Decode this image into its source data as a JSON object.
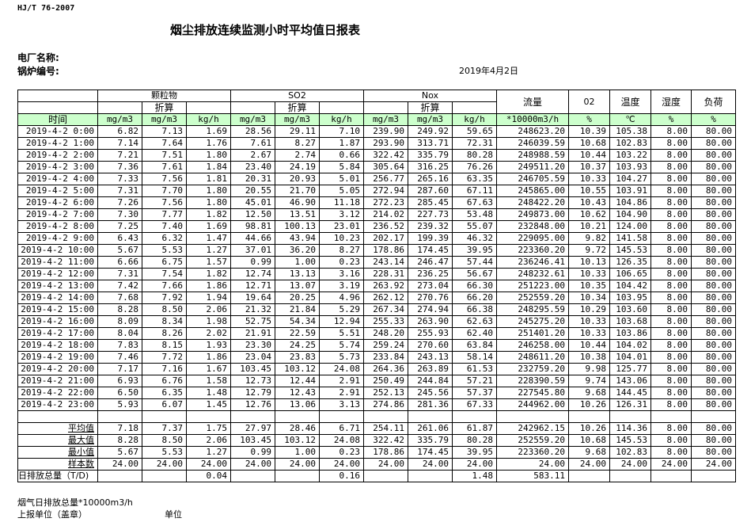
{
  "standard": "HJ/T  76-2007",
  "title": "烟尘排放连续监测小时平均值日报表",
  "plant_label": "电厂名称:",
  "boiler_label": "锅炉编号:",
  "date": "2019年4月2日",
  "header": {
    "groups": [
      "颗粒物",
      "SO2",
      "Nox"
    ],
    "converted": "折算",
    "flow": "流量",
    "o2": "02",
    "temp": "温度",
    "humidity": "湿度",
    "load": "负荷",
    "units": [
      "时间",
      "mg/m3",
      "mg/m3",
      "kg/h",
      "mg/m3",
      "mg/m3",
      "kg/h",
      "mg/m3",
      "mg/m3",
      "kg/h",
      "*10000m3/h",
      "%",
      "℃",
      "%",
      "%"
    ]
  },
  "rows": [
    [
      "2019-4-2 0:00",
      "6.82",
      "7.13",
      "1.69",
      "28.56",
      "29.11",
      "7.10",
      "239.90",
      "249.92",
      "59.65",
      "248623.20",
      "10.39",
      "105.38",
      "8.00",
      "80.00"
    ],
    [
      "2019-4-2 1:00",
      "7.14",
      "7.64",
      "1.76",
      "7.61",
      "8.27",
      "1.87",
      "293.90",
      "313.71",
      "72.31",
      "246039.59",
      "10.68",
      "102.83",
      "8.00",
      "80.00"
    ],
    [
      "2019-4-2 2:00",
      "7.21",
      "7.51",
      "1.80",
      "2.67",
      "2.74",
      "0.66",
      "322.42",
      "335.79",
      "80.28",
      "248988.59",
      "10.44",
      "103.22",
      "8.00",
      "80.00"
    ],
    [
      "2019-4-2 3:00",
      "7.36",
      "7.61",
      "1.84",
      "23.40",
      "24.19",
      "5.84",
      "305.64",
      "316.25",
      "76.26",
      "249511.20",
      "10.37",
      "103.93",
      "8.00",
      "80.00"
    ],
    [
      "2019-4-2 4:00",
      "7.33",
      "7.56",
      "1.81",
      "20.31",
      "20.93",
      "5.01",
      "256.77",
      "265.16",
      "63.35",
      "246705.59",
      "10.33",
      "104.27",
      "8.00",
      "80.00"
    ],
    [
      "2019-4-2 5:00",
      "7.31",
      "7.70",
      "1.80",
      "20.55",
      "21.70",
      "5.05",
      "272.94",
      "287.60",
      "67.11",
      "245865.00",
      "10.55",
      "103.91",
      "8.00",
      "80.00"
    ],
    [
      "2019-4-2 6:00",
      "7.26",
      "7.56",
      "1.80",
      "45.01",
      "46.90",
      "11.18",
      "272.23",
      "285.45",
      "67.63",
      "248422.20",
      "10.43",
      "104.86",
      "8.00",
      "80.00"
    ],
    [
      "2019-4-2 7:00",
      "7.30",
      "7.77",
      "1.82",
      "12.50",
      "13.51",
      "3.12",
      "214.02",
      "227.73",
      "53.48",
      "249873.00",
      "10.62",
      "104.90",
      "8.00",
      "80.00"
    ],
    [
      "2019-4-2 8:00",
      "7.25",
      "7.40",
      "1.69",
      "98.81",
      "100.13",
      "23.01",
      "236.52",
      "239.32",
      "55.07",
      "232848.00",
      "10.21",
      "124.00",
      "8.00",
      "80.00"
    ],
    [
      "2019-4-2 9:00",
      "6.43",
      "6.32",
      "1.47",
      "44.66",
      "43.94",
      "10.23",
      "202.17",
      "199.39",
      "46.32",
      "229095.00",
      "9.82",
      "141.58",
      "8.00",
      "80.00"
    ],
    [
      "2019-4-2 10:00",
      "5.67",
      "5.53",
      "1.27",
      "37.01",
      "36.20",
      "8.27",
      "178.86",
      "174.45",
      "39.95",
      "223360.20",
      "9.72",
      "145.53",
      "8.00",
      "80.00"
    ],
    [
      "2019-4-2 11:00",
      "6.66",
      "6.75",
      "1.57",
      "0.99",
      "1.00",
      "0.23",
      "243.14",
      "246.47",
      "57.44",
      "236246.41",
      "10.13",
      "126.35",
      "8.00",
      "80.00"
    ],
    [
      "2019-4-2 12:00",
      "7.31",
      "7.54",
      "1.82",
      "12.74",
      "13.13",
      "3.16",
      "228.31",
      "236.25",
      "56.67",
      "248232.61",
      "10.33",
      "106.65",
      "8.00",
      "80.00"
    ],
    [
      "2019-4-2 13:00",
      "7.42",
      "7.66",
      "1.86",
      "12.71",
      "13.07",
      "3.19",
      "263.92",
      "273.04",
      "66.30",
      "251223.00",
      "10.35",
      "104.42",
      "8.00",
      "80.00"
    ],
    [
      "2019-4-2 14:00",
      "7.68",
      "7.92",
      "1.94",
      "19.64",
      "20.25",
      "4.96",
      "262.12",
      "270.76",
      "66.20",
      "252559.20",
      "10.34",
      "103.95",
      "8.00",
      "80.00"
    ],
    [
      "2019-4-2 15:00",
      "8.28",
      "8.50",
      "2.06",
      "21.32",
      "21.84",
      "5.29",
      "267.34",
      "274.94",
      "66.38",
      "248295.59",
      "10.29",
      "103.60",
      "8.00",
      "80.00"
    ],
    [
      "2019-4-2 16:00",
      "8.09",
      "8.34",
      "1.98",
      "52.75",
      "54.34",
      "12.94",
      "255.33",
      "263.90",
      "62.63",
      "245275.20",
      "10.33",
      "103.68",
      "8.00",
      "80.00"
    ],
    [
      "2019-4-2 17:00",
      "8.04",
      "8.26",
      "2.02",
      "21.91",
      "22.59",
      "5.51",
      "248.20",
      "255.93",
      "62.40",
      "251401.20",
      "10.33",
      "103.86",
      "8.00",
      "80.00"
    ],
    [
      "2019-4-2 18:00",
      "7.83",
      "8.15",
      "1.93",
      "23.30",
      "24.25",
      "5.74",
      "259.24",
      "270.60",
      "63.84",
      "246258.00",
      "10.44",
      "104.02",
      "8.00",
      "80.00"
    ],
    [
      "2019-4-2 19:00",
      "7.46",
      "7.72",
      "1.86",
      "23.04",
      "23.83",
      "5.73",
      "233.84",
      "243.13",
      "58.14",
      "248611.20",
      "10.38",
      "104.01",
      "8.00",
      "80.00"
    ],
    [
      "2019-4-2 20:00",
      "7.17",
      "7.16",
      "1.67",
      "103.45",
      "103.12",
      "24.08",
      "264.36",
      "263.89",
      "61.53",
      "232759.20",
      "9.98",
      "125.77",
      "8.00",
      "80.00"
    ],
    [
      "2019-4-2 21:00",
      "6.93",
      "6.76",
      "1.58",
      "12.73",
      "12.44",
      "2.91",
      "250.49",
      "244.84",
      "57.21",
      "228390.59",
      "9.74",
      "143.06",
      "8.00",
      "80.00"
    ],
    [
      "2019-4-2 22:00",
      "6.50",
      "6.35",
      "1.48",
      "12.79",
      "12.43",
      "2.91",
      "252.13",
      "245.56",
      "57.37",
      "227545.80",
      "9.68",
      "144.45",
      "8.00",
      "80.00"
    ],
    [
      "2019-4-2 23:00",
      "5.93",
      "6.07",
      "1.45",
      "12.76",
      "13.06",
      "3.13",
      "274.86",
      "281.36",
      "67.33",
      "244962.00",
      "10.26",
      "126.31",
      "8.00",
      "80.00"
    ],
    [
      "",
      "",
      "",
      "",
      "",
      "",
      "",
      "",
      "",
      "",
      "",
      "",
      "",
      "",
      ""
    ]
  ],
  "stats": [
    [
      "平均值",
      "7.18",
      "7.37",
      "1.75",
      "27.97",
      "28.46",
      "6.71",
      "254.11",
      "261.06",
      "61.87",
      "242962.15",
      "10.26",
      "114.36",
      "8.00",
      "80.00"
    ],
    [
      "最大值",
      "8.28",
      "8.50",
      "2.06",
      "103.45",
      "103.12",
      "24.08",
      "322.42",
      "335.79",
      "80.28",
      "252559.20",
      "10.68",
      "145.53",
      "8.00",
      "80.00"
    ],
    [
      "最小值",
      "5.67",
      "5.53",
      "1.27",
      "0.99",
      "1.00",
      "0.23",
      "178.86",
      "174.45",
      "39.95",
      "223360.20",
      "9.68",
      "102.83",
      "8.00",
      "80.00"
    ],
    [
      "样本数",
      "24.00",
      "24.00",
      "24.00",
      "24.00",
      "24.00",
      "24.00",
      "24.00",
      "24.00",
      "24.00",
      "24.00",
      "24.00",
      "24.00",
      "24.00",
      "24.00"
    ]
  ],
  "daily_total": [
    "日排放总量（T/D)",
    "",
    "",
    "0.04",
    "",
    "",
    "0.16",
    "",
    "",
    "1.48",
    "583.11",
    "",
    "",
    "",
    ""
  ],
  "footer": {
    "flue_gas_total": "烟气日排放总量*10000m3/h",
    "reporting_unit": "上报单位（盖章）",
    "unit": "单位"
  },
  "colors": {
    "unit_row_bg": "#ccffcc"
  }
}
